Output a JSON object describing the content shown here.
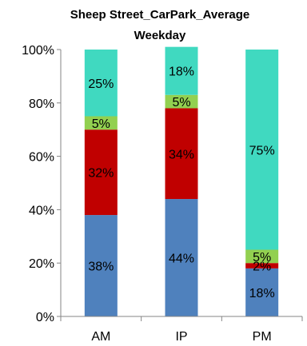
{
  "chart_data": {
    "type": "bar",
    "stacked": true,
    "title_lines": [
      "Sheep Street_CarPark_Average",
      "Weekday"
    ],
    "categories": [
      "AM",
      "IP",
      "PM"
    ],
    "ylim": [
      0,
      100
    ],
    "yticks": [
      0,
      20,
      40,
      60,
      80,
      100
    ],
    "ytick_labels": [
      "0%",
      "20%",
      "40%",
      "60%",
      "80%",
      "100%"
    ],
    "grid": false,
    "legend": "none",
    "series": [
      {
        "values": [
          38,
          44,
          18
        ],
        "labels": [
          "38%",
          "44%",
          "18%"
        ],
        "color": "#4f81bd"
      },
      {
        "values": [
          32,
          34,
          2
        ],
        "labels": [
          "32%",
          "34%",
          "2%"
        ],
        "color": "#c00000"
      },
      {
        "values": [
          5,
          5,
          5
        ],
        "labels": [
          "5%",
          "5%",
          "5%"
        ],
        "color": "#92d050"
      },
      {
        "values": [
          25,
          18,
          75
        ],
        "labels": [
          "25%",
          "18%",
          "75%"
        ],
        "color": "#40d9c0"
      }
    ]
  }
}
